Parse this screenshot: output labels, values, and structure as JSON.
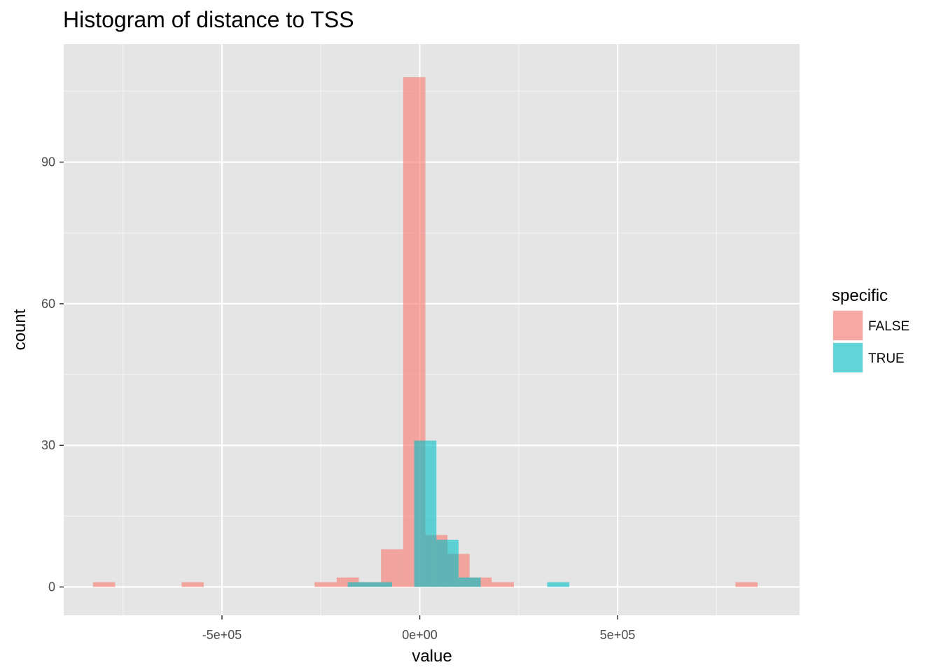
{
  "chart_data": {
    "type": "bar",
    "title": "Histogram of distance to TSS",
    "xlabel": "value",
    "ylabel": "count",
    "xlim": [
      -900000,
      960000
    ],
    "ylim": [
      -6,
      115
    ],
    "x_ticks": [
      -500000,
      0,
      500000
    ],
    "x_tick_labels": [
      "-5e+05",
      "0e+00",
      "5e+05"
    ],
    "y_ticks": [
      0,
      30,
      60,
      90
    ],
    "y_tick_labels": [
      "0",
      "30",
      "60",
      "90"
    ],
    "grid": true,
    "legend": {
      "title": "specific",
      "placement": "right"
    },
    "bin_width": 56000,
    "series": [
      {
        "name": "FALSE",
        "color": "#f8766d",
        "bins": [
          {
            "x": -798000,
            "count": 1
          },
          {
            "x": -574000,
            "count": 1
          },
          {
            "x": -238000,
            "count": 1
          },
          {
            "x": -182000,
            "count": 2
          },
          {
            "x": -126000,
            "count": 1
          },
          {
            "x": -70000,
            "count": 8
          },
          {
            "x": -14000,
            "count": 108
          },
          {
            "x": 42000,
            "count": 11
          },
          {
            "x": 98000,
            "count": 7
          },
          {
            "x": 154000,
            "count": 2
          },
          {
            "x": 210000,
            "count": 1
          },
          {
            "x": 826000,
            "count": 1
          }
        ]
      },
      {
        "name": "TRUE",
        "color": "#00bfc4",
        "bins": [
          {
            "x": -154000,
            "count": 1
          },
          {
            "x": -98000,
            "count": 1
          },
          {
            "x": 14000,
            "count": 31
          },
          {
            "x": 70000,
            "count": 10
          },
          {
            "x": 126000,
            "count": 2
          },
          {
            "x": 350000,
            "count": 1
          }
        ]
      }
    ]
  }
}
